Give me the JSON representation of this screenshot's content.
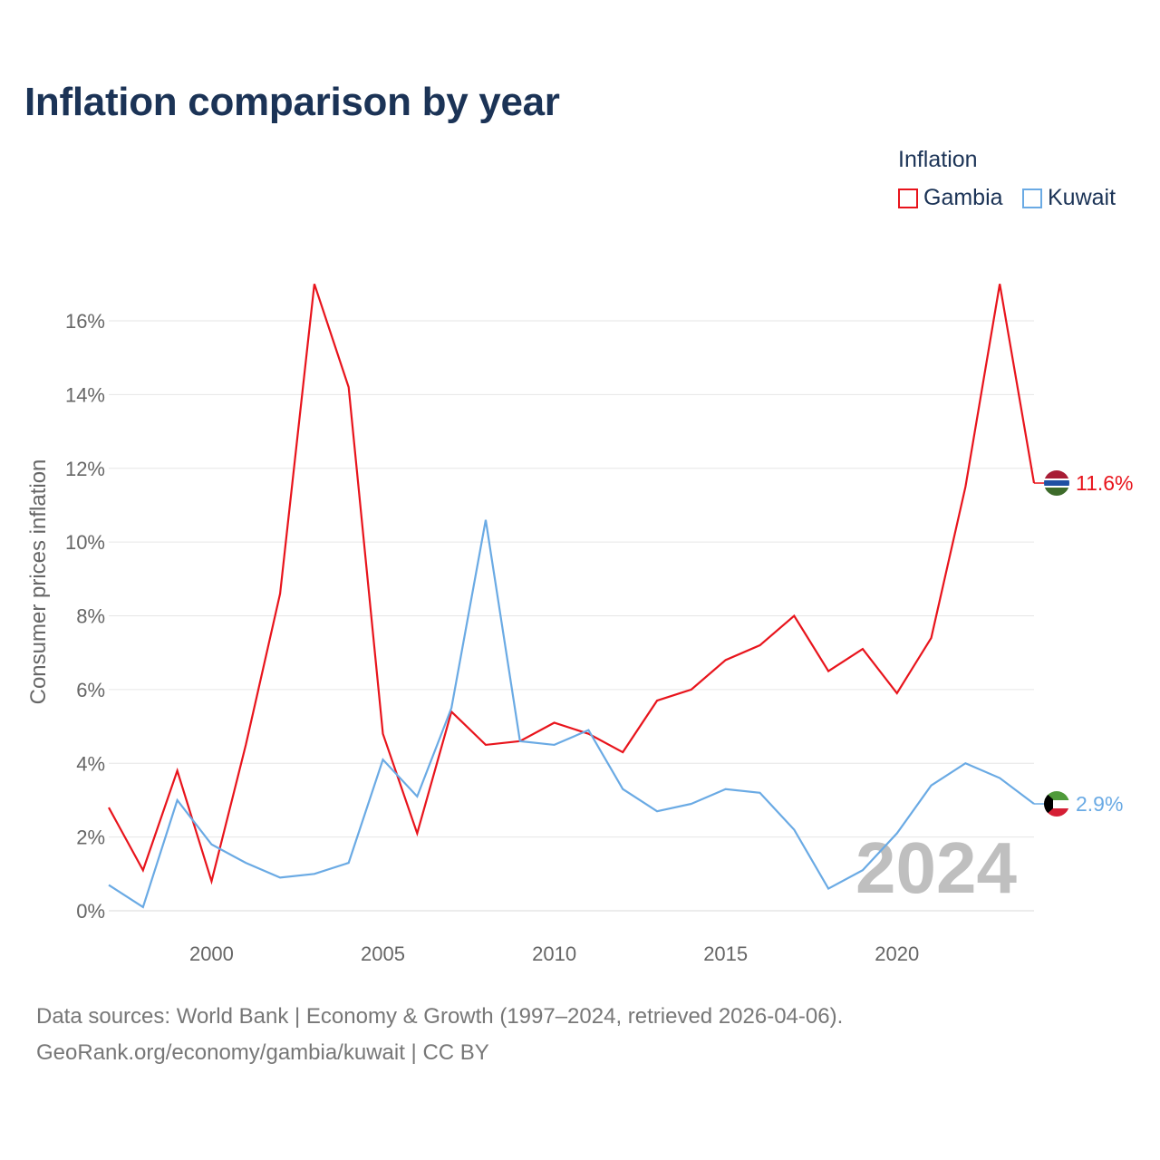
{
  "title": "Inflation comparison by year",
  "legend": {
    "title": "Inflation",
    "items": [
      {
        "label": "Gambia",
        "color": "#e8141c"
      },
      {
        "label": "Kuwait",
        "color": "#6aaae4"
      }
    ]
  },
  "footer": {
    "line1": "Data sources: World Bank | Economy & Growth (1997–2024, retrieved 2026-04-06).",
    "line2": "GeoRank.org/economy/gambia/kuwait | CC BY"
  },
  "chart_data": {
    "type": "line",
    "title": "Inflation comparison by year",
    "xlabel": "",
    "ylabel": "Consumer prices inflation",
    "xlim": [
      1997,
      2024
    ],
    "ylim": [
      0,
      17
    ],
    "x_ticks": [
      2000,
      2005,
      2010,
      2015,
      2020
    ],
    "y_ticks": [
      0,
      2,
      4,
      6,
      8,
      10,
      12,
      14,
      16
    ],
    "y_tick_labels": [
      "0%",
      "2%",
      "4%",
      "6%",
      "8%",
      "10%",
      "12%",
      "14%",
      "16%"
    ],
    "grid": true,
    "legend_position": "top-right",
    "watermark": "2024",
    "x": [
      1997,
      1998,
      1999,
      2000,
      2001,
      2002,
      2003,
      2004,
      2005,
      2006,
      2007,
      2008,
      2009,
      2010,
      2011,
      2012,
      2013,
      2014,
      2015,
      2016,
      2017,
      2018,
      2019,
      2020,
      2021,
      2022,
      2023,
      2024
    ],
    "series": [
      {
        "name": "Gambia",
        "color": "#e8141c",
        "end_label": "11.6%",
        "values": [
          2.8,
          1.1,
          3.8,
          0.8,
          4.5,
          8.6,
          17.0,
          14.2,
          4.8,
          2.1,
          5.4,
          4.5,
          4.6,
          5.1,
          4.8,
          4.3,
          5.7,
          6.0,
          6.8,
          7.2,
          8.0,
          6.5,
          7.1,
          5.9,
          7.4,
          11.5,
          17.0,
          11.6
        ]
      },
      {
        "name": "Kuwait",
        "color": "#6aaae4",
        "end_label": "2.9%",
        "values": [
          0.7,
          0.1,
          3.0,
          1.8,
          1.3,
          0.9,
          1.0,
          1.3,
          4.1,
          3.1,
          5.5,
          10.6,
          4.6,
          4.5,
          4.9,
          3.3,
          2.7,
          2.9,
          3.3,
          3.2,
          2.2,
          0.6,
          1.1,
          2.1,
          3.4,
          4.0,
          3.6,
          2.9
        ]
      }
    ]
  }
}
